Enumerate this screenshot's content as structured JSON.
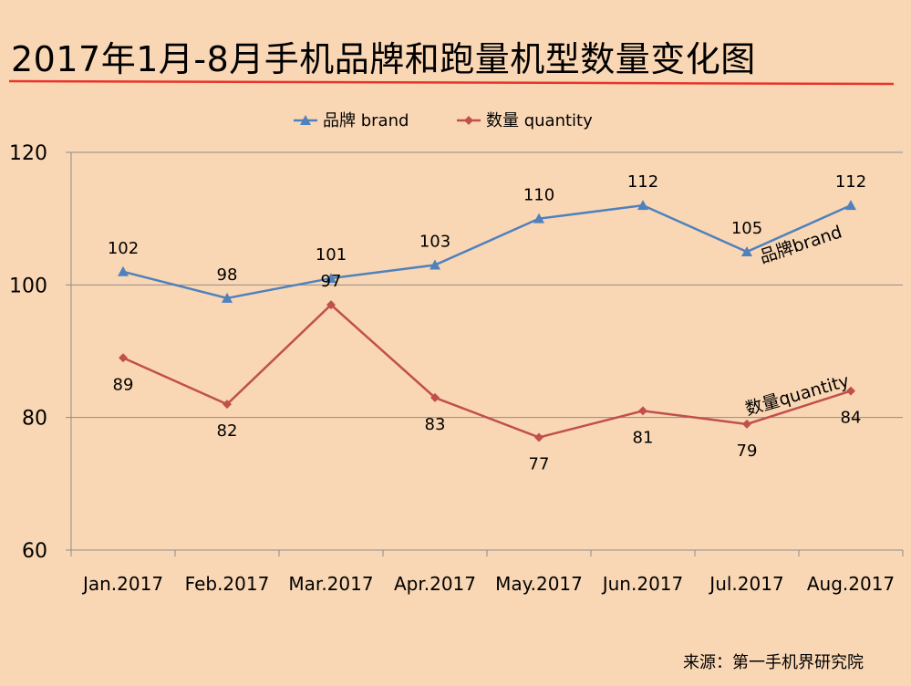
{
  "page": {
    "title": "2017年1月-8月手机品牌和跑量机型数量变化图",
    "source": "来源：第一手机界研究院"
  },
  "colors": {
    "background": "#FAD7B4",
    "brand": "#4F81BD",
    "quantity": "#C0504D",
    "underline": "#E8342B",
    "grid": "#8C8C8C"
  },
  "chart_data": {
    "type": "line",
    "title": "",
    "categories": [
      "Jan.2017",
      "Feb.2017",
      "Mar.2017",
      "Apr.2017",
      "May.2017",
      "Jun.2017",
      "Jul.2017",
      "Aug.2017"
    ],
    "series": [
      {
        "name": "品牌 brand",
        "marker": "triangle",
        "values": [
          102,
          98,
          101,
          103,
          110,
          112,
          105,
          112
        ]
      },
      {
        "name": "数量 quantity",
        "marker": "diamond",
        "values": [
          89,
          82,
          97,
          83,
          77,
          81,
          79,
          84
        ]
      }
    ],
    "ylim": [
      60,
      120
    ],
    "yticks": [
      60,
      80,
      100,
      120
    ],
    "grid": true,
    "legend": "top-center",
    "annotations": [
      {
        "text": "品牌brand",
        "series": 0,
        "near": "Jul.2017-Aug.2017"
      },
      {
        "text": "数量quantity",
        "series": 1,
        "near": "Jul.2017-Aug.2017"
      }
    ],
    "xlabel": "",
    "ylabel": ""
  }
}
